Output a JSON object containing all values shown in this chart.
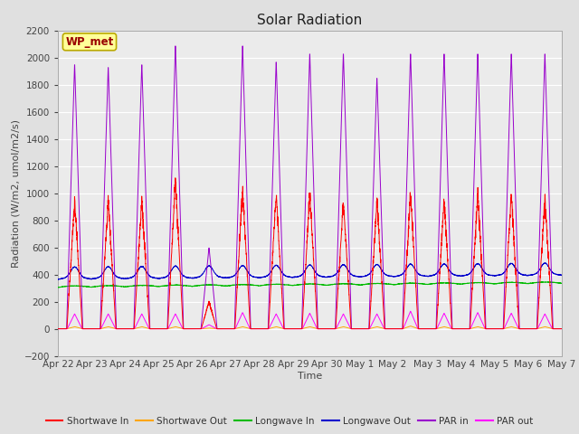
{
  "title": "Solar Radiation",
  "xlabel": "Time",
  "ylabel": "Radiation (W/m2, umol/m2/s)",
  "ylim": [
    -200,
    2200
  ],
  "yticks": [
    -200,
    0,
    200,
    400,
    600,
    800,
    1000,
    1200,
    1400,
    1600,
    1800,
    2000,
    2200
  ],
  "annotation": "WP_met",
  "x_tick_labels": [
    "Apr 22",
    "Apr 23",
    "Apr 24",
    "Apr 25",
    "Apr 26",
    "Apr 27",
    "Apr 28",
    "Apr 29",
    "Apr 30",
    "May 1",
    "May 2 ",
    "May 3",
    "May 4",
    "May 5",
    "May 6",
    "May 7"
  ],
  "num_days": 15,
  "colors": {
    "shortwave_in": "#FF0000",
    "shortwave_out": "#FFA500",
    "longwave_in": "#00BB00",
    "longwave_out": "#0000CC",
    "par_in": "#9900CC",
    "par_out": "#FF00FF"
  },
  "legend_labels": [
    "Shortwave In",
    "Shortwave Out",
    "Longwave In",
    "Longwave Out",
    "PAR in",
    "PAR out"
  ],
  "fig_bg": "#E0E0E0",
  "plot_bg": "#EBEBEB",
  "grid_color": "#FFFFFF",
  "annotation_bg": "#FFFF99",
  "annotation_border": "#BBAA00",
  "title_fontsize": 11,
  "label_fontsize": 8,
  "tick_fontsize": 7.5
}
